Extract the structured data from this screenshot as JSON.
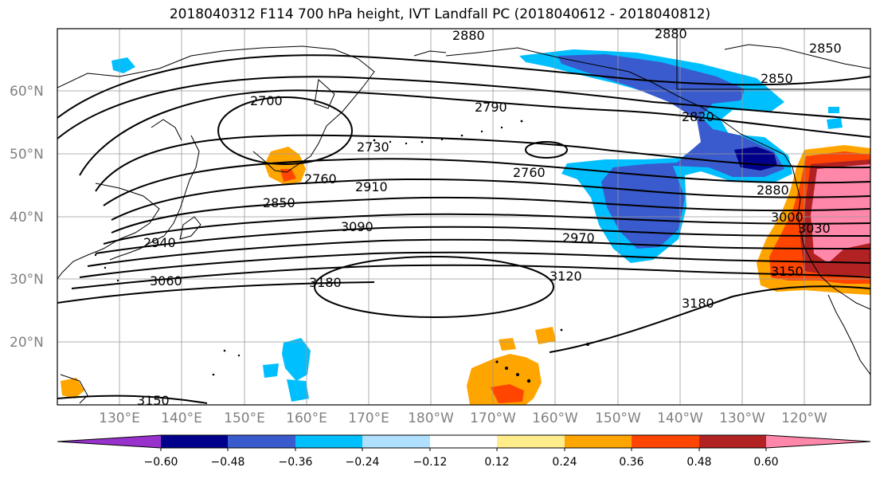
{
  "title": "2018040312 F114 700 hPa height, IVT Landfall PC (2018040612 - 2018040812)",
  "map": {
    "lat_labels": [
      "60°N",
      "50°N",
      "40°N",
      "30°N",
      "20°N"
    ],
    "lon_labels": [
      "130°E",
      "140°E",
      "150°E",
      "160°E",
      "170°E",
      "180°W",
      "170°W",
      "160°W",
      "150°W",
      "140°W",
      "130°W",
      "120°W"
    ],
    "gridlines": true
  },
  "contour_labels": [
    "2880",
    "2880",
    "2850",
    "2850",
    "2700",
    "2790",
    "2820",
    "2730",
    "2760",
    "2760",
    "2850",
    "2910",
    "2880",
    "3000",
    "3090",
    "2940",
    "2970",
    "3030",
    "3060",
    "3180",
    "3120",
    "3150",
    "3180",
    "3150"
  ],
  "colorbar": {
    "ticks": [
      "−0.60",
      "−0.48",
      "−0.36",
      "−0.24",
      "−0.12",
      "0.12",
      "0.24",
      "0.36",
      "0.48",
      "0.60"
    ],
    "colors": [
      "#9932cc",
      "#00008b",
      "#3a5bcd",
      "#00bfff",
      "#b0e0ff",
      "#ffffff",
      "#ffec8b",
      "#ffa500",
      "#ff4500",
      "#b22222",
      "#ff88aa"
    ],
    "extend": "both"
  }
}
